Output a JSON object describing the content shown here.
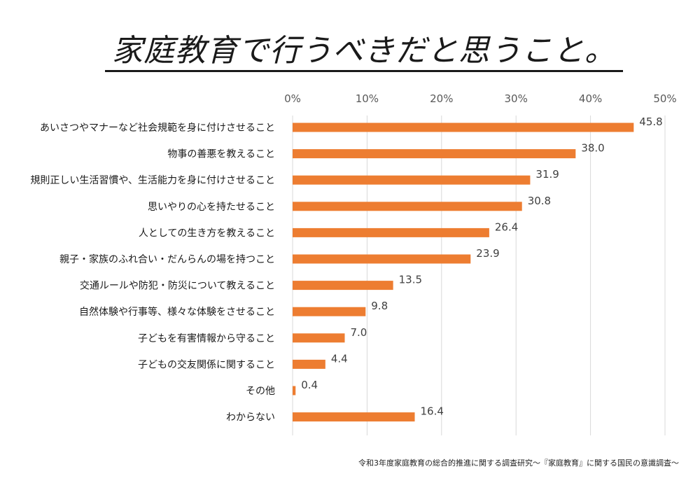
{
  "chart_data": {
    "type": "bar",
    "orientation": "horizontal",
    "title": "家庭教育で行うべきだと思うこと。",
    "categories": [
      "あいさつやマナーなど社会規範を身に付けさせること",
      "物事の善悪を教えること",
      "規則正しい生活習慣や、生活能力を身に付けさせること",
      "思いやりの心を持たせること",
      "人としての生き方を教えること",
      "親子・家族のふれ合い・だんらんの場を持つこと",
      "交通ルールや防犯・防災について教えること",
      "自然体験や行事等、様々な体験をさせること",
      "子どもを有害情報から守ること",
      "子どもの交友関係に関すること",
      "その他",
      "わからない"
    ],
    "values": [
      45.8,
      38.0,
      31.9,
      30.8,
      26.4,
      23.9,
      13.5,
      9.8,
      7.0,
      4.4,
      0.4,
      16.4
    ],
    "value_labels": [
      "45.8",
      "38.0",
      "31.9",
      "30.8",
      "26.4",
      "23.9",
      "13.5",
      "9.8",
      "7.0",
      "4.4",
      "0.4",
      "16.4"
    ],
    "xlim": [
      0,
      50
    ],
    "x_ticks": [
      0,
      10,
      20,
      30,
      40,
      50
    ],
    "x_tick_labels": [
      "0%",
      "10%",
      "20%",
      "30%",
      "40%",
      "50%"
    ],
    "x_axis_position": "top",
    "grid": true,
    "bar_color": "#ED7D31",
    "gridline_color": "#D9D9D9",
    "label_color": "#404040",
    "tick_label_color": "#595959"
  },
  "source": "令和3年度家庭教育の総合的推進に関する調査研究～『家庭教育』に関する国民の意識調査～"
}
